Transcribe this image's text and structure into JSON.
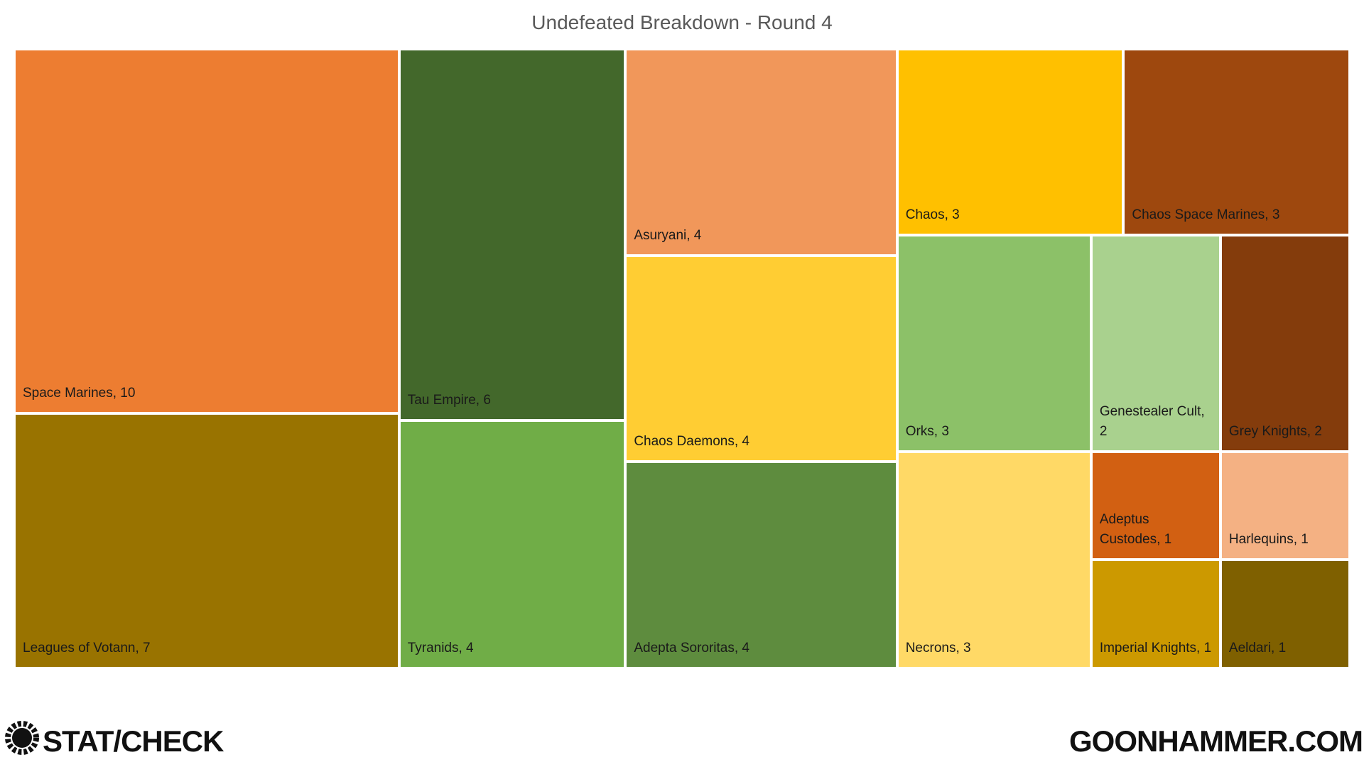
{
  "chart_data": {
    "type": "treemap",
    "title": "Undefeated Breakdown - Round 4",
    "categories": [
      "Space Marines, 10",
      "Leagues of Votann, 7",
      "Tau Empire, 6",
      "Tyranids, 4",
      "Asuryani, 4",
      "Chaos Daemons, 4",
      "Adepta Sororitas, 4",
      "Chaos, 3",
      "Chaos Space Marines, 3",
      "Orks, 3",
      "Necrons, 3",
      "Genestealer Cult, 2",
      "Grey Knights, 2",
      "Adeptus Custodes, 1",
      "Harlequins, 1",
      "Imperial Knights, 1",
      "Aeldari, 1"
    ],
    "values": [
      10,
      7,
      6,
      4,
      4,
      4,
      4,
      3,
      3,
      3,
      3,
      2,
      2,
      1,
      1,
      1,
      1
    ],
    "colors": [
      "#ED7D31",
      "#997300",
      "#43682B",
      "#70AD47",
      "#F1975A",
      "#FFCD33",
      "#5E8C3E",
      "#FFC000",
      "#9E480E",
      "#8CC168",
      "#FFD966",
      "#A9D18E",
      "#843C0C",
      "#D26012",
      "#F4B183",
      "#CC9900",
      "#7F6000"
    ]
  },
  "footer": {
    "left": "STAT/CHECK",
    "right": "GOONHAMMER.COM"
  }
}
